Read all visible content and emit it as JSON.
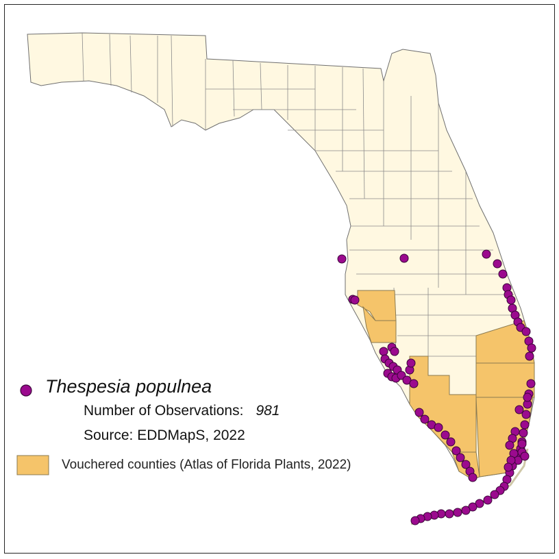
{
  "legend": {
    "species": "Thespesia populnea",
    "observations_label": "Number of Observations:",
    "observations_value": "981",
    "source": "Source: EDDMapS, 2022",
    "vouchered_label": "Vouchered counties (Atlas of Florida Plants, 2022)"
  },
  "colors": {
    "state_fill": "#fff8e1",
    "county_border": "#8a8a8a",
    "vouchered_fill": "#f5c46a",
    "observation_fill": "#9b0a8e",
    "observation_stroke": "#3a0538"
  },
  "icons": {
    "observation_marker": "purple-circle-icon",
    "vouchered_swatch": "orange-square-icon"
  }
}
